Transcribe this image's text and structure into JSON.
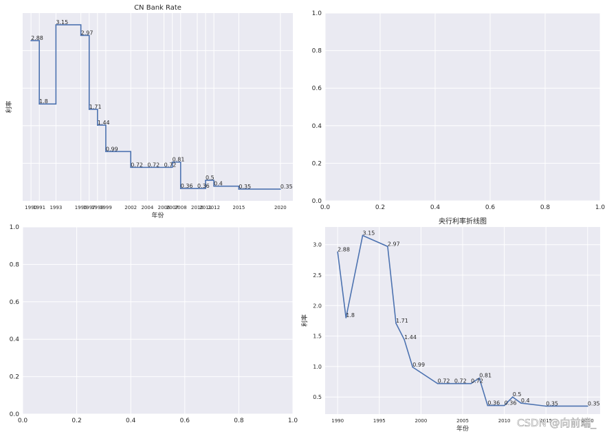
{
  "chart_data": [
    {
      "type": "step",
      "title": "CN Bank Rate",
      "xlabel": "年份",
      "ylabel": "利率",
      "x": [
        1990,
        1991,
        1993,
        1996,
        1997,
        1998,
        1999,
        2002,
        2004,
        2006,
        2007,
        2008,
        2010,
        2011,
        2012,
        2015,
        2020
      ],
      "values": [
        2.88,
        1.8,
        3.15,
        2.97,
        1.71,
        1.44,
        0.99,
        0.72,
        0.72,
        0.72,
        0.81,
        0.36,
        0.36,
        0.5,
        0.4,
        0.35,
        0.35
      ],
      "xticks": [
        "1990",
        "1991",
        "1993",
        "1996",
        "1997",
        "1998",
        "1999",
        "2002",
        "2004",
        "2006",
        "2007",
        "2008",
        "2010",
        "2011",
        "2012",
        "2015",
        "2020"
      ],
      "xlim": [
        1989,
        2021.5
      ],
      "ylim": [
        0.15,
        3.35
      ],
      "show_yticks": false,
      "grid": true
    },
    {
      "type": "empty",
      "xticks": [
        "0.0",
        "0.2",
        "0.4",
        "0.6",
        "0.8",
        "1.0"
      ],
      "yticks": [
        "0.0",
        "0.2",
        "0.4",
        "0.6",
        "0.8",
        "1.0"
      ],
      "xlim": [
        0,
        1
      ],
      "ylim": [
        0,
        1
      ],
      "grid": true
    },
    {
      "type": "empty",
      "xticks": [
        "0.0",
        "0.2",
        "0.4",
        "0.6",
        "0.8",
        "1.0"
      ],
      "yticks": [
        "0.0",
        "0.2",
        "0.4",
        "0.6",
        "0.8",
        "1.0"
      ],
      "xlim": [
        0,
        1
      ],
      "ylim": [
        0,
        1
      ],
      "grid": true
    },
    {
      "type": "line",
      "title": "央行利率折线图",
      "xlabel": "年份",
      "ylabel": "利率",
      "x": [
        1990,
        1991,
        1993,
        1996,
        1997,
        1998,
        1999,
        2002,
        2004,
        2006,
        2007,
        2008,
        2010,
        2011,
        2012,
        2015,
        2020
      ],
      "values": [
        2.88,
        1.8,
        3.15,
        2.97,
        1.71,
        1.44,
        0.99,
        0.72,
        0.72,
        0.72,
        0.81,
        0.36,
        0.36,
        0.5,
        0.4,
        0.35,
        0.35
      ],
      "xticks": [
        "1990",
        "1995",
        "2000",
        "2005",
        "2010",
        "2015",
        "2020"
      ],
      "yticks": [
        "0.5",
        "1.0",
        "1.5",
        "2.0",
        "2.5",
        "3.0"
      ],
      "xlim": [
        1988.5,
        2021.5
      ],
      "ylim": [
        0.22,
        3.29
      ],
      "grid": true
    }
  ],
  "watermark": "CSDN @向前端_"
}
